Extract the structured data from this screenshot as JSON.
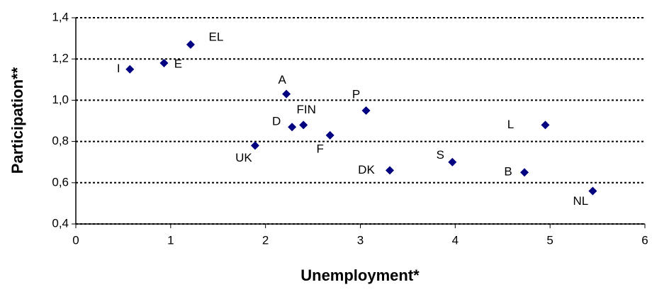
{
  "chart_data": {
    "type": "scatter",
    "xlabel": "Unemployment*",
    "ylabel": "Participation**",
    "series": [
      {
        "color": "#000080",
        "labels": [
          "I",
          "E",
          "EL",
          "A",
          "D",
          "FIN",
          "F",
          "P",
          "UK",
          "DK",
          "S",
          "B",
          "L",
          "NL"
        ],
        "x": [
          0.57,
          0.93,
          1.21,
          2.22,
          2.28,
          2.4,
          2.68,
          3.06,
          1.89,
          3.31,
          3.97,
          4.73,
          4.95,
          5.45
        ],
        "values": [
          1.15,
          1.18,
          1.27,
          1.03,
          0.87,
          0.88,
          0.83,
          0.95,
          0.78,
          0.66,
          0.7,
          0.65,
          0.88,
          0.56
        ]
      }
    ],
    "xlim": [
      0,
      6
    ],
    "xticks": [
      0,
      1,
      2,
      3,
      4,
      5,
      6
    ],
    "ylim": [
      0.4,
      1.4
    ],
    "yticks": [
      {
        "value": 0.4,
        "label": "0,4"
      },
      {
        "value": 0.6,
        "label": "0,6"
      },
      {
        "value": 0.8,
        "label": "0,8"
      },
      {
        "value": 1.0,
        "label": "1,0"
      },
      {
        "value": 1.2,
        "label": "1,2"
      },
      {
        "value": 1.4,
        "label": "1,4"
      }
    ],
    "grid": true
  }
}
